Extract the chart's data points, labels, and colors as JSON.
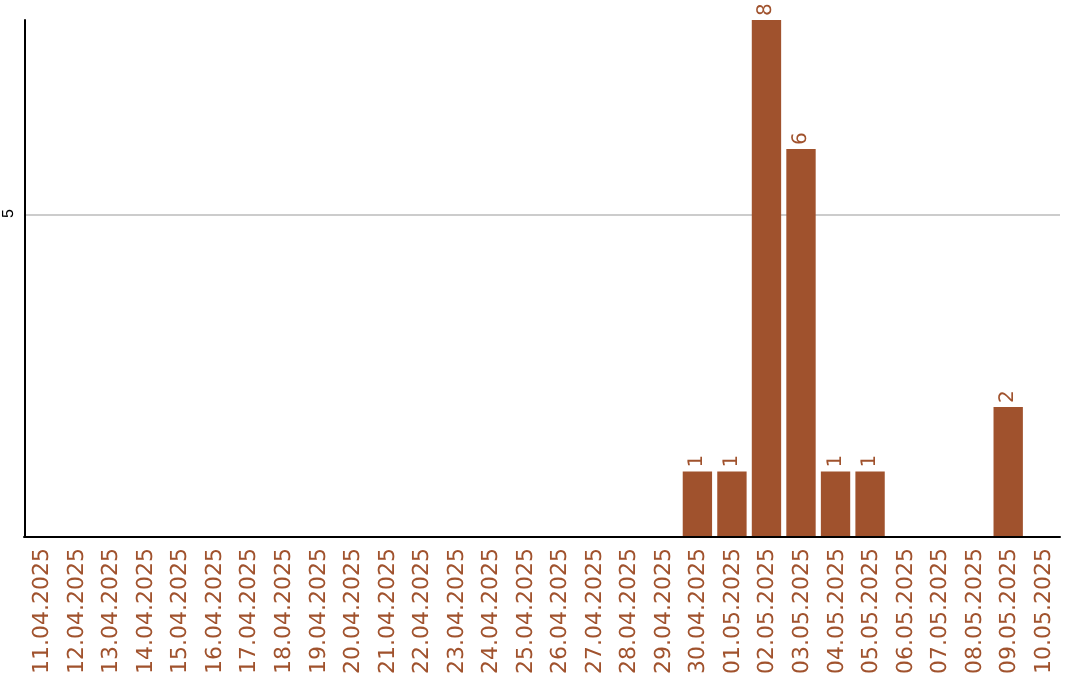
{
  "chart_data": {
    "type": "bar",
    "categories": [
      "11.04.2025",
      "12.04.2025",
      "13.04.2025",
      "14.04.2025",
      "15.04.2025",
      "16.04.2025",
      "17.04.2025",
      "18.04.2025",
      "19.04.2025",
      "20.04.2025",
      "21.04.2025",
      "22.04.2025",
      "23.04.2025",
      "24.04.2025",
      "25.04.2025",
      "26.04.2025",
      "27.04.2025",
      "28.04.2025",
      "29.04.2025",
      "30.04.2025",
      "01.05.2025",
      "02.05.2025",
      "03.05.2025",
      "04.05.2025",
      "05.05.2025",
      "06.05.2025",
      "07.05.2025",
      "08.05.2025",
      "09.05.2025",
      "10.05.2025"
    ],
    "values": [
      null,
      null,
      null,
      null,
      null,
      null,
      null,
      null,
      null,
      null,
      null,
      null,
      null,
      null,
      null,
      null,
      null,
      null,
      null,
      1,
      1,
      8,
      6,
      1,
      1,
      null,
      null,
      null,
      2,
      null
    ],
    "data_labels": true,
    "color": "#a0522d",
    "ylim": [
      0,
      8
    ],
    "yticks": [
      5
    ],
    "grid": "y"
  }
}
